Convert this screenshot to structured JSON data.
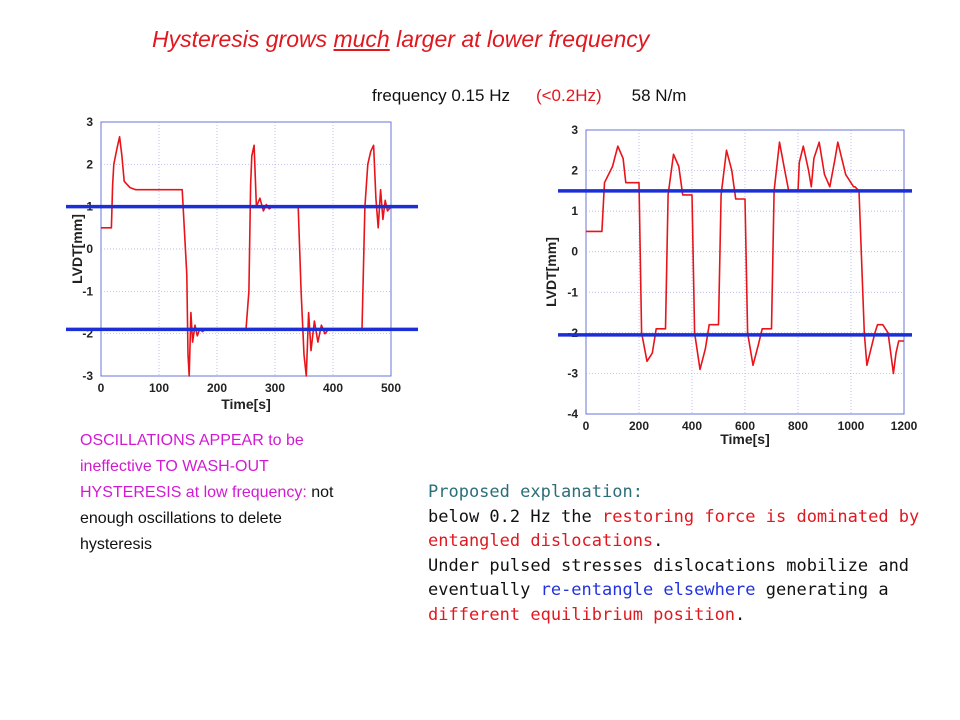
{
  "title": {
    "before": "Hysteresis grows ",
    "emph": "much",
    "after": " larger at lower frequency"
  },
  "subtitle": {
    "frequency": "frequency 0.15 Hz",
    "condition": "(<0.2Hz)",
    "spring": "58 N/m"
  },
  "note": {
    "pink": "OSCILLATIONS APPEAR to be ineffective TO WASH-OUT HYSTERESIS at low frequency:",
    "black": " not enough oscillations to delete hysteresis"
  },
  "explanation": {
    "heading": "Proposed explanation:",
    "l1_black": "below 0.2 Hz the ",
    "l1_red": "restoring force is dominated by entangled dislocations",
    "l1_end": ".",
    "l2_black": "Under pulsed stresses dislocations mobilize and eventually ",
    "l2_blue": "re-entangle elsewhere",
    "l2_black2": " generating a ",
    "l2_red": "different equilibrium position",
    "l2_end": "."
  },
  "colors": {
    "trace": "#e8141a",
    "reference": "#1a2fd8",
    "grid": "#9ea6e8"
  },
  "chart_data": [
    {
      "type": "line",
      "xlabel": "Time[s]",
      "ylabel": "LVDT[mm]",
      "xlim": [
        0,
        500
      ],
      "ylim": [
        -3,
        3
      ],
      "xticks": [
        0,
        100,
        200,
        300,
        400,
        500
      ],
      "yticks": [
        -3,
        -2,
        -1,
        0,
        1,
        2,
        3
      ],
      "grid": true,
      "reference_lines": [
        1,
        -1.9
      ],
      "series": [
        {
          "x": [
            0,
            18,
            20,
            22,
            28,
            32,
            36,
            40,
            50,
            60,
            70,
            100,
            120,
            140,
            148,
            150,
            152,
            155,
            158,
            162,
            166,
            170,
            175,
            180,
            190,
            200,
            250,
            255,
            258,
            260,
            264,
            268,
            274,
            280,
            285,
            290,
            295,
            300,
            340,
            345,
            350,
            354,
            358,
            362,
            368,
            374,
            380,
            386,
            392,
            398,
            410,
            450,
            455,
            460,
            465,
            470,
            474,
            478,
            482,
            486,
            490,
            494,
            500
          ],
          "values": [
            0.5,
            0.5,
            1.5,
            2.0,
            2.4,
            2.65,
            2.2,
            1.6,
            1.45,
            1.4,
            1.4,
            1.4,
            1.4,
            1.4,
            -0.6,
            -2.5,
            -3.0,
            -1.5,
            -2.2,
            -1.8,
            -2.05,
            -1.9,
            -1.95,
            -1.9,
            -1.9,
            -1.9,
            -1.9,
            -1.0,
            1.5,
            2.2,
            2.45,
            1.0,
            1.2,
            0.9,
            1.05,
            0.95,
            1.0,
            1.0,
            1.0,
            -1.0,
            -2.5,
            -3.0,
            -1.5,
            -2.4,
            -1.7,
            -2.2,
            -1.8,
            -2.0,
            -1.9,
            -1.9,
            -1.9,
            -1.9,
            1.0,
            2.0,
            2.3,
            2.45,
            1.2,
            0.5,
            1.4,
            0.7,
            1.15,
            0.9,
            1.0
          ]
        }
      ]
    },
    {
      "type": "line",
      "xlabel": "Time[s]",
      "ylabel": "LVDT[mm]",
      "xlim": [
        0,
        1200
      ],
      "ylim": [
        -4,
        3
      ],
      "xticks": [
        0,
        200,
        400,
        600,
        800,
        1000,
        1200
      ],
      "yticks": [
        -4,
        -3,
        -2,
        -1,
        0,
        1,
        2,
        3
      ],
      "grid": true,
      "reference_lines": [
        1.5,
        -2.05
      ],
      "series": [
        {
          "x": [
            0,
            60,
            70,
            100,
            120,
            140,
            150,
            200,
            210,
            230,
            250,
            265,
            280,
            300,
            310,
            330,
            350,
            365,
            380,
            400,
            410,
            430,
            450,
            465,
            480,
            500,
            510,
            530,
            550,
            565,
            580,
            600,
            610,
            630,
            650,
            665,
            680,
            700,
            710,
            730,
            750,
            765,
            780,
            800,
            805,
            820,
            840,
            850,
            860,
            880,
            900,
            920,
            940,
            950,
            980,
            1010,
            1015,
            1030,
            1050,
            1060,
            1090,
            1100,
            1120,
            1140,
            1160,
            1170,
            1180,
            1200
          ],
          "values": [
            0.5,
            0.5,
            1.7,
            2.1,
            2.6,
            2.3,
            1.7,
            1.7,
            -2.0,
            -2.7,
            -2.5,
            -1.9,
            -1.9,
            -1.9,
            1.4,
            2.4,
            2.1,
            1.4,
            1.4,
            1.4,
            -2.0,
            -2.9,
            -2.4,
            -1.8,
            -1.8,
            -1.8,
            1.4,
            2.5,
            2.0,
            1.3,
            1.3,
            1.3,
            -2.0,
            -2.8,
            -2.3,
            -1.9,
            -1.9,
            -1.9,
            1.5,
            2.7,
            2.0,
            1.5,
            1.5,
            1.5,
            2.2,
            2.6,
            2.0,
            1.6,
            2.3,
            2.7,
            1.9,
            1.6,
            2.3,
            2.7,
            1.9,
            1.6,
            1.6,
            1.5,
            -2.0,
            -2.8,
            -2.0,
            -1.8,
            -1.8,
            -2.0,
            -3.0,
            -2.5,
            -2.2,
            -2.2
          ]
        }
      ]
    }
  ]
}
